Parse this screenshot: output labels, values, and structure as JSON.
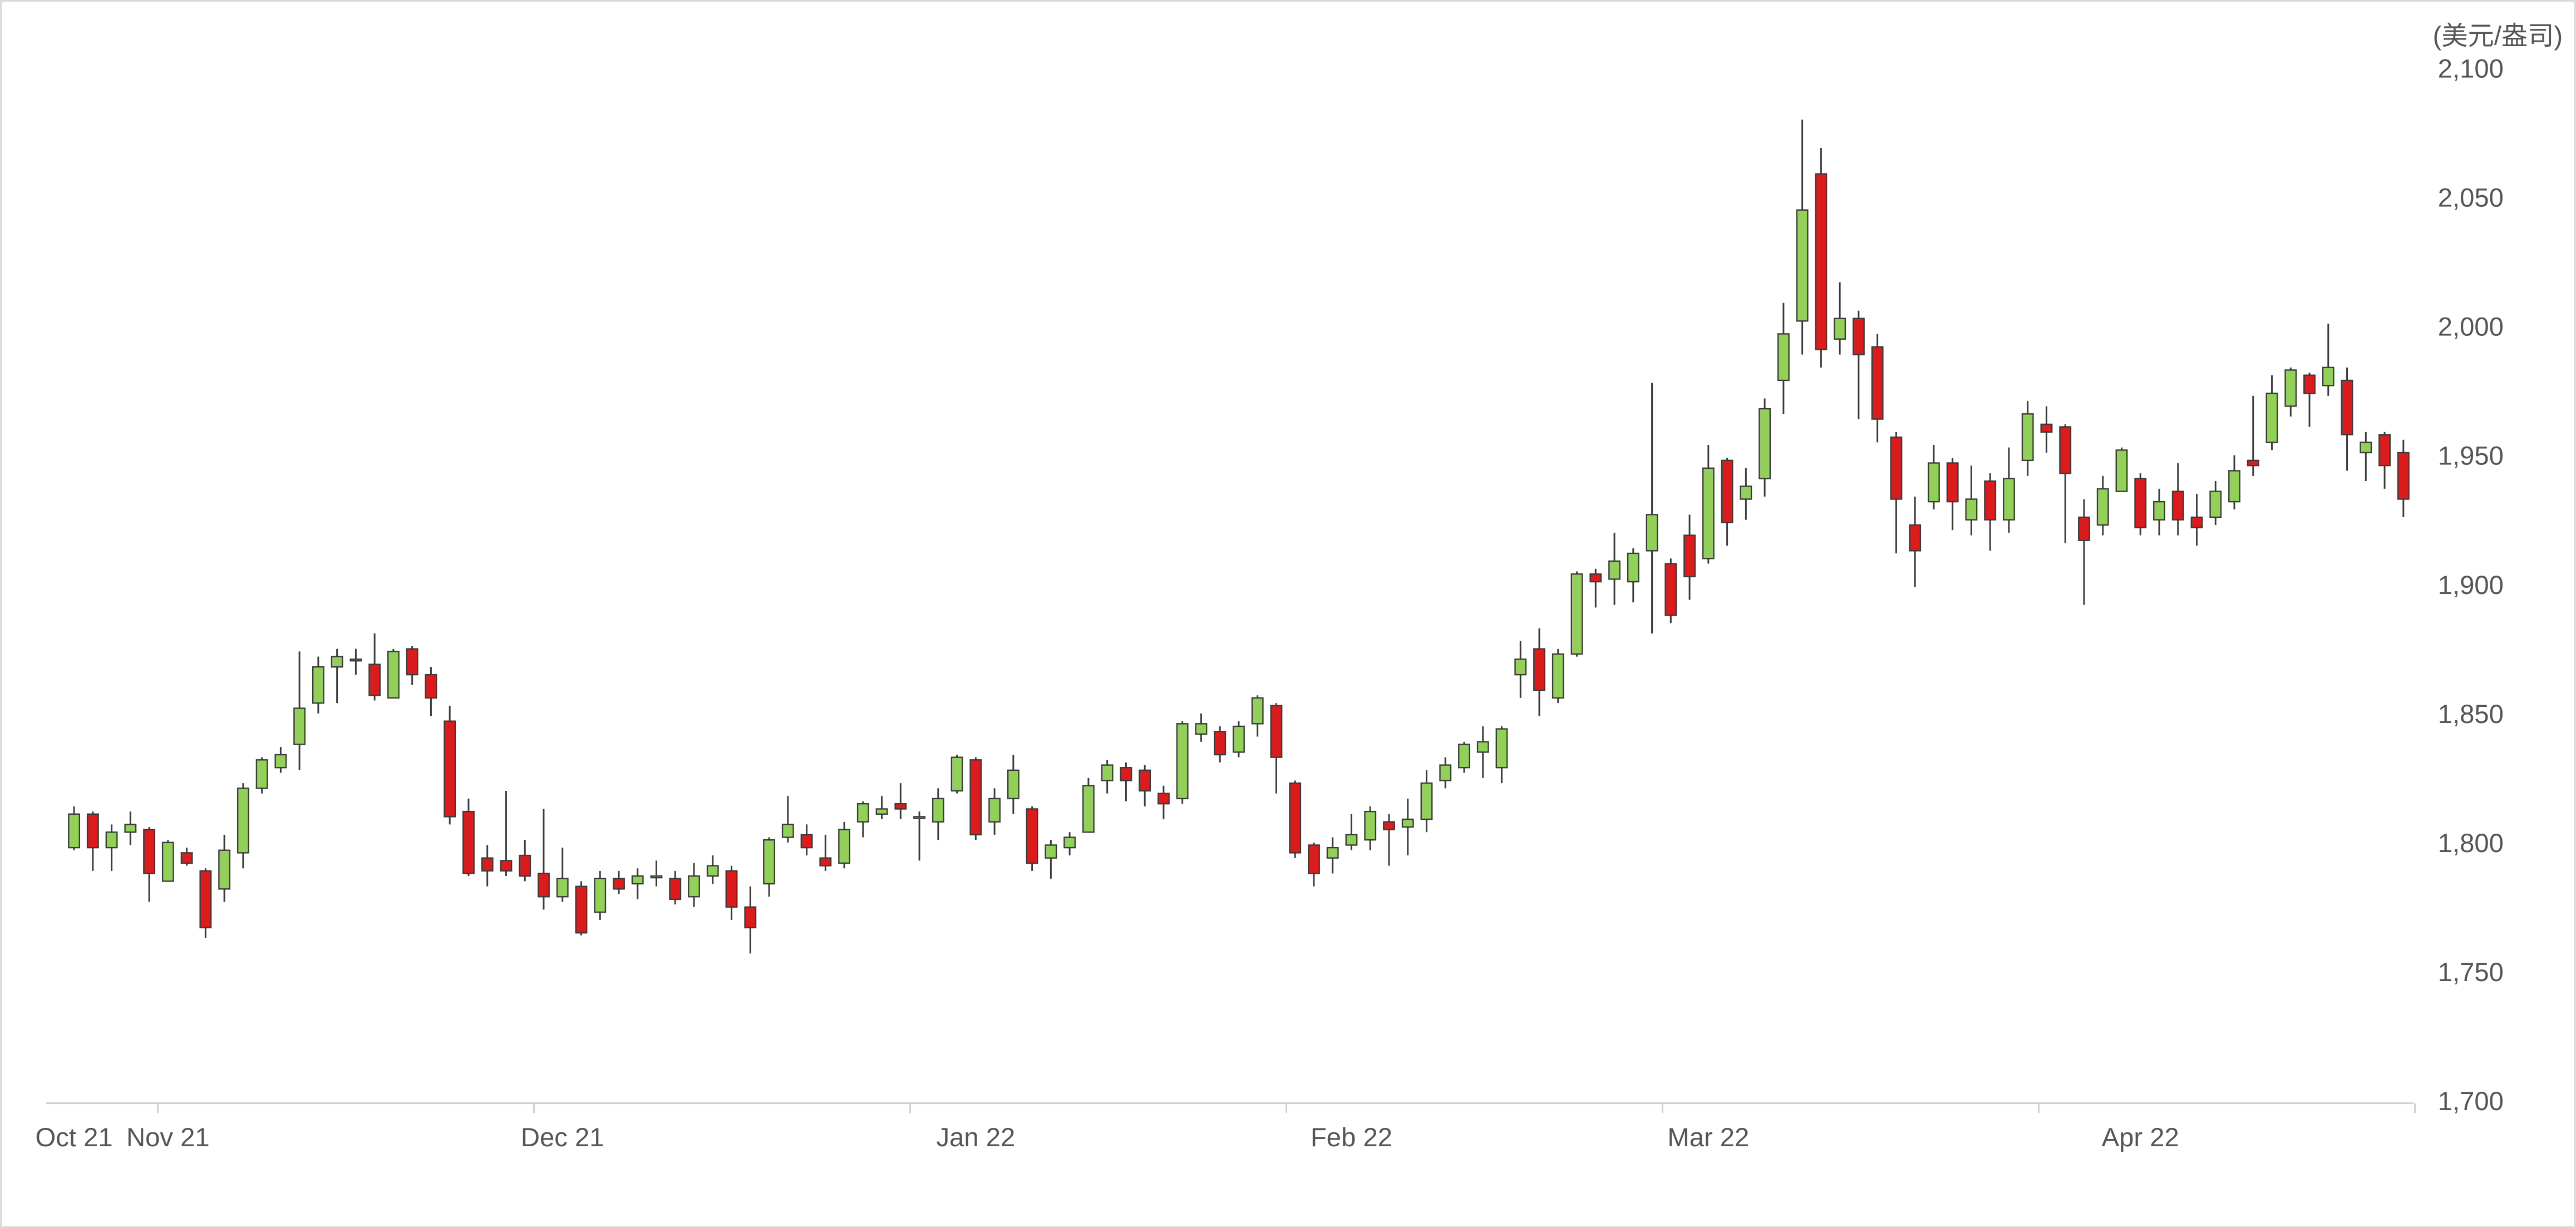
{
  "chart_data": {
    "type": "candlestick",
    "ylabel": "(美元/盎司)",
    "categories": [
      "Oct 21",
      null,
      null,
      null,
      null,
      "Nov 21",
      null,
      null,
      null,
      null,
      null,
      null,
      null,
      null,
      null,
      null,
      null,
      null,
      null,
      null,
      null,
      null,
      null,
      null,
      null,
      null,
      "Dec 21",
      null,
      null,
      null,
      null,
      null,
      null,
      null,
      null,
      null,
      null,
      null,
      null,
      null,
      null,
      null,
      null,
      null,
      null,
      null,
      null,
      null,
      "Jan 22",
      null,
      null,
      null,
      null,
      null,
      null,
      null,
      null,
      null,
      null,
      null,
      null,
      null,
      null,
      null,
      null,
      null,
      null,
      null,
      "Feb 22",
      null,
      null,
      null,
      null,
      null,
      null,
      null,
      null,
      null,
      null,
      null,
      null,
      null,
      null,
      null,
      null,
      null,
      null,
      "Mar 22",
      null,
      null,
      null,
      null,
      null,
      null,
      null,
      null,
      null,
      null,
      null,
      null,
      null,
      null,
      null,
      null,
      null,
      null,
      null,
      null,
      null,
      null,
      "Apr 22",
      null,
      null,
      null,
      null,
      null,
      null,
      null,
      null,
      null,
      null,
      null,
      null,
      null,
      null
    ],
    "open": [
      1799,
      1812,
      1799,
      1805,
      1806,
      1786,
      1797,
      1790,
      1783,
      1797,
      1822,
      1830,
      1839,
      1855,
      1869,
      1872,
      1870,
      1857,
      1876,
      1866,
      1848,
      1813,
      1795,
      1794,
      1796,
      1789,
      1780,
      1784,
      1774,
      1787,
      1785,
      1788,
      1787,
      1780,
      1788,
      1790,
      1776,
      1785,
      1803,
      1804,
      1795,
      1793,
      1809,
      1812,
      1816,
      1811,
      1809,
      1821,
      1833,
      1809,
      1818,
      1814,
      1795,
      1799,
      1805,
      1825,
      1830,
      1829,
      1820,
      1818,
      1843,
      1844,
      1836,
      1847,
      1854,
      1824,
      1800,
      1795,
      1800,
      1802,
      1809,
      1807,
      1810,
      1825,
      1830,
      1836,
      1830,
      1866,
      1876,
      1857,
      1874,
      1905,
      1903,
      1902,
      1914,
      1909,
      1920,
      1911,
      1949,
      1934,
      1942,
      1980,
      2003,
      2060,
      1996,
      2004,
      1993,
      1958,
      1924,
      1933,
      1948,
      1926,
      1941,
      1926,
      1949,
      1963,
      1962,
      1927,
      1924,
      1937,
      1942,
      1926,
      1937,
      1927,
      1927,
      1933,
      1949,
      1956,
      1970,
      1982,
      1978,
      1980,
      1952,
      1959,
      1952
    ],
    "high": [
      1815,
      1813,
      1808,
      1813,
      1807,
      1802,
      1799,
      1791,
      1804,
      1824,
      1834,
      1838,
      1875,
      1873,
      1876,
      1876,
      1882,
      1876,
      1877,
      1869,
      1854,
      1818,
      1800,
      1821,
      1802,
      1814,
      1799,
      1786,
      1790,
      1790,
      1791,
      1794,
      1790,
      1793,
      1796,
      1792,
      1784,
      1803,
      1819,
      1808,
      1804,
      1809,
      1817,
      1819,
      1824,
      1813,
      1822,
      1835,
      1834,
      1822,
      1835,
      1815,
      1802,
      1805,
      1826,
      1833,
      1832,
      1831,
      1823,
      1848,
      1851,
      1846,
      1848,
      1858,
      1855,
      1825,
      1801,
      1803,
      1812,
      1815,
      1812,
      1818,
      1829,
      1834,
      1840,
      1846,
      1846,
      1879,
      1884,
      1876,
      1906,
      1907,
      1921,
      1915,
      1979,
      1911,
      1928,
      1955,
      1950,
      1946,
      1973,
      2010,
      2081,
      2070,
      2018,
      2007,
      1998,
      1960,
      1935,
      1955,
      1950,
      1947,
      1944,
      1954,
      1972,
      1970,
      1963,
      1934,
      1943,
      1954,
      1944,
      1938,
      1948,
      1936,
      1941,
      1951,
      1974,
      1982,
      1985,
      1983,
      2002,
      1985,
      1960,
      1960,
      1957
    ],
    "low": [
      1798,
      1790,
      1790,
      1800,
      1778,
      1786,
      1792,
      1764,
      1778,
      1791,
      1820,
      1828,
      1829,
      1851,
      1855,
      1866,
      1856,
      1857,
      1862,
      1850,
      1808,
      1788,
      1784,
      1788,
      1786,
      1775,
      1778,
      1765,
      1771,
      1781,
      1779,
      1784,
      1777,
      1776,
      1785,
      1771,
      1758,
      1780,
      1801,
      1796,
      1790,
      1791,
      1803,
      1810,
      1810,
      1794,
      1802,
      1820,
      1802,
      1804,
      1812,
      1790,
      1787,
      1796,
      1805,
      1820,
      1817,
      1815,
      1810,
      1816,
      1840,
      1832,
      1834,
      1842,
      1820,
      1795,
      1784,
      1789,
      1798,
      1798,
      1792,
      1796,
      1805,
      1822,
      1828,
      1826,
      1824,
      1857,
      1850,
      1855,
      1873,
      1892,
      1893,
      1894,
      1882,
      1886,
      1895,
      1909,
      1916,
      1926,
      1935,
      1967,
      1990,
      1985,
      1990,
      1965,
      1956,
      1913,
      1900,
      1930,
      1922,
      1920,
      1914,
      1921,
      1943,
      1952,
      1917,
      1893,
      1920,
      1937,
      1920,
      1920,
      1920,
      1916,
      1924,
      1930,
      1943,
      1953,
      1966,
      1962,
      1974,
      1945,
      1941,
      1938,
      1927
    ],
    "close": [
      1812,
      1799,
      1805,
      1808,
      1789,
      1801,
      1793,
      1768,
      1798,
      1822,
      1833,
      1835,
      1853,
      1869,
      1873,
      1872,
      1858,
      1875,
      1866,
      1857,
      1811,
      1789,
      1790,
      1790,
      1788,
      1780,
      1787,
      1766,
      1787,
      1783,
      1788,
      1788,
      1779,
      1788,
      1792,
      1776,
      1768,
      1802,
      1808,
      1799,
      1792,
      1806,
      1816,
      1814,
      1814,
      1811,
      1818,
      1834,
      1804,
      1818,
      1829,
      1793,
      1800,
      1803,
      1823,
      1831,
      1825,
      1821,
      1816,
      1847,
      1847,
      1835,
      1846,
      1857,
      1834,
      1797,
      1789,
      1799,
      1804,
      1813,
      1806,
      1810,
      1824,
      1831,
      1839,
      1840,
      1845,
      1872,
      1860,
      1874,
      1905,
      1902,
      1910,
      1913,
      1928,
      1889,
      1904,
      1946,
      1925,
      1939,
      1969,
      1998,
      2046,
      1992,
      2004,
      1990,
      1965,
      1934,
      1914,
      1948,
      1933,
      1934,
      1926,
      1942,
      1967,
      1960,
      1944,
      1918,
      1938,
      1953,
      1923,
      1933,
      1926,
      1923,
      1937,
      1945,
      1947,
      1975,
      1984,
      1975,
      1985,
      1959,
      1956,
      1947,
      1934
    ],
    "up_color": "#92d05a",
    "down_color": "#dc1c1c",
    "ylim": [
      1700,
      2100
    ],
    "yticks": [
      {
        "value": 1700,
        "label": "1,700"
      },
      {
        "value": 1750,
        "label": "1,750"
      },
      {
        "value": 1800,
        "label": "1,800"
      },
      {
        "value": 1850,
        "label": "1,850"
      },
      {
        "value": 1900,
        "label": "1,900"
      },
      {
        "value": 1950,
        "label": "1,950"
      },
      {
        "value": 2000,
        "label": "2,000"
      },
      {
        "value": 2050,
        "label": "2,050"
      },
      {
        "value": 2100,
        "label": "2,100"
      }
    ]
  }
}
